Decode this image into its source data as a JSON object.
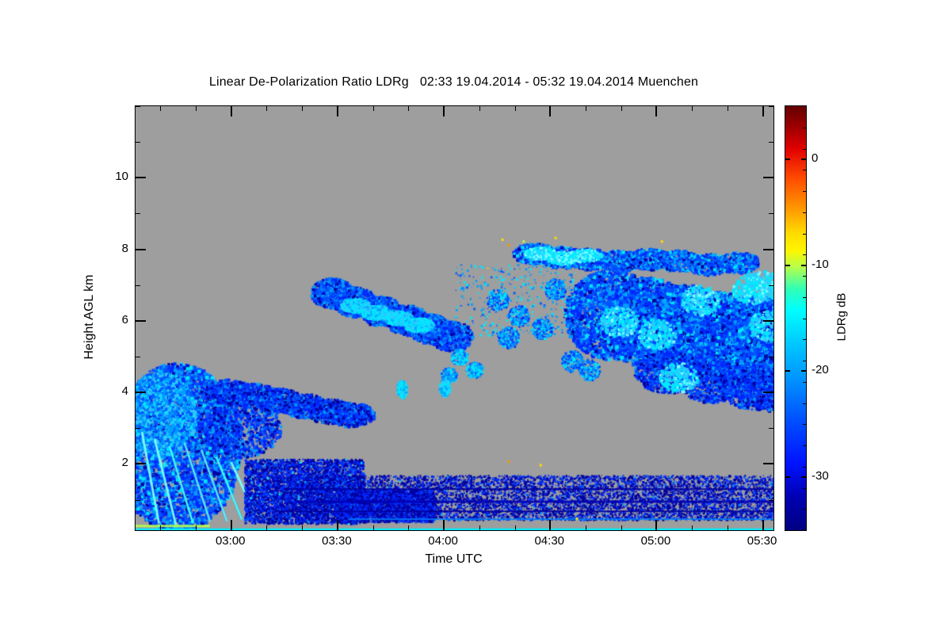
{
  "chart_data": {
    "type": "heatmap",
    "title": "Linear De-Polarization Ratio LDRg   02:33 19.04.2014 - 05:32 19.04.2014 Muenchen",
    "xlabel": "Time UTC",
    "ylabel": "Height AGL km",
    "xlim": [
      2.55,
      5.55
    ],
    "ylim": [
      0.15,
      12.0
    ],
    "xticks": {
      "values": [
        3.0,
        3.5,
        4.0,
        4.5,
        5.0,
        5.5
      ],
      "labels": [
        "03:00",
        "03:30",
        "04:00",
        "04:30",
        "05:00",
        "05:30"
      ],
      "minor_step": 0.1666667
    },
    "yticks": {
      "values": [
        2,
        4,
        6,
        8,
        10
      ],
      "labels": [
        "2",
        "4",
        "6",
        "8",
        "10"
      ],
      "minor_step": 1
    },
    "plot": {
      "background": "#9e9e9e"
    },
    "colorbar": {
      "label": "LDRg dB",
      "vmin": -35,
      "vmax": 5,
      "ticks": [
        {
          "value": 0,
          "label": "0"
        },
        {
          "value": -10,
          "label": "-10"
        },
        {
          "value": -20,
          "label": "-20"
        },
        {
          "value": -30,
          "label": "-30"
        }
      ],
      "minor_step": 2,
      "gradient": [
        [
          "#640000",
          0
        ],
        [
          "#a00000",
          5
        ],
        [
          "#e10000",
          10
        ],
        [
          "#ff4b00",
          17
        ],
        [
          "#ff9600",
          24
        ],
        [
          "#ffdc00",
          30
        ],
        [
          "#fff500",
          34
        ],
        [
          "#b4ff4b",
          38
        ],
        [
          "#32ffb4",
          43
        ],
        [
          "#00ffff",
          48
        ],
        [
          "#00c8ff",
          56
        ],
        [
          "#0096ff",
          64
        ],
        [
          "#0050ff",
          74
        ],
        [
          "#0014ff",
          84
        ],
        [
          "#0000b4",
          92
        ],
        [
          "#000082",
          100
        ]
      ]
    },
    "features": [
      {
        "type": "cloud",
        "name": "left-cloud-core",
        "c": [
          2.74,
          2.5
        ],
        "r": [
          0.3,
          2.35
        ],
        "n": 5200,
        "size": [
          2,
          5
        ],
        "colors": [
          [
            "#0028ff",
            3
          ],
          [
            "#0055ff",
            3
          ],
          [
            "#00a0ff",
            2
          ],
          [
            "#0000a0",
            1.2
          ],
          [
            "#00eaff",
            0.8
          ]
        ]
      },
      {
        "type": "cloud",
        "name": "left-cloud-bright",
        "c": [
          2.66,
          3.4
        ],
        "r": [
          0.17,
          1.2
        ],
        "n": 1600,
        "size": [
          2,
          4
        ],
        "colors": [
          [
            "#00a0ff",
            3
          ],
          [
            "#33c6ff",
            2
          ],
          [
            "#0055ff",
            2
          ],
          [
            "#00eaff",
            1
          ]
        ]
      },
      {
        "type": "cloud",
        "name": "left-cloud-mid",
        "c": [
          3.05,
          3.0
        ],
        "r": [
          0.18,
          0.8
        ],
        "n": 900,
        "size": [
          2,
          4
        ],
        "colors": [
          [
            "#0028ff",
            3
          ],
          [
            "#0055ff",
            2
          ],
          [
            "#0000a0",
            1.5
          ],
          [
            "#00a0ff",
            1
          ]
        ]
      },
      {
        "type": "path",
        "name": "left-cloud-arm",
        "points": [
          [
            2.98,
            4.05
          ],
          [
            3.1,
            3.95
          ],
          [
            3.22,
            3.8
          ],
          [
            3.34,
            3.65
          ],
          [
            3.46,
            3.5
          ],
          [
            3.56,
            3.4
          ]
        ],
        "r": [
          0.11,
          0.34
        ],
        "n": 520,
        "size": [
          2,
          4
        ],
        "colors": [
          [
            "#0028ff",
            3
          ],
          [
            "#0055ff",
            2
          ],
          [
            "#0000a0",
            2
          ],
          [
            "#00a0ff",
            1
          ]
        ]
      },
      {
        "type": "streaks",
        "name": "fallstreaks",
        "width": 3,
        "alpha": 0.85,
        "lines": [
          [
            2.58,
            2.9,
            2.66,
            0.35
          ],
          [
            2.64,
            2.7,
            2.74,
            0.3
          ],
          [
            2.71,
            2.5,
            2.82,
            0.35
          ],
          [
            2.78,
            2.6,
            2.9,
            0.4
          ],
          [
            2.86,
            2.4,
            2.98,
            0.4
          ],
          [
            2.93,
            2.2,
            3.05,
            0.45
          ],
          [
            3.0,
            2.05,
            3.12,
            0.5
          ],
          [
            3.07,
            1.85,
            3.18,
            0.5
          ],
          [
            3.14,
            1.6,
            3.24,
            0.55
          ]
        ],
        "colors": [
          [
            "#7dffff",
            2
          ],
          [
            "#00eaff",
            2
          ],
          [
            "#33c6ff",
            1
          ]
        ]
      },
      {
        "type": "speckle",
        "name": "dense-speckle-chunk",
        "x": [
          3.06,
          3.62
        ],
        "y": [
          0.35,
          2.15
        ],
        "n": 4200,
        "size": [
          2,
          3
        ],
        "colors": [
          [
            "#0000a0",
            4
          ],
          [
            "#0028ff",
            3
          ],
          [
            "#0055ff",
            1
          ],
          [
            "#00eaff",
            0.2
          ]
        ]
      },
      {
        "type": "speckle",
        "name": "speckle-band",
        "x": [
          3.2,
          5.55
        ],
        "y": [
          0.45,
          1.7
        ],
        "n": 8500,
        "size": [
          1,
          3
        ],
        "colors": [
          [
            "#0000a0",
            5
          ],
          [
            "#0028ff",
            2.5
          ],
          [
            "#0055ff",
            0.7
          ],
          [
            "#00a0ff",
            0.2
          ]
        ]
      },
      {
        "type": "speckle",
        "name": "speckle-band-dense",
        "x": [
          3.5,
          3.95
        ],
        "y": [
          0.4,
          1.3
        ],
        "n": 2500,
        "size": [
          2,
          3
        ],
        "colors": [
          [
            "#0000a0",
            4
          ],
          [
            "#0028ff",
            3
          ],
          [
            "#0055ff",
            0.5
          ]
        ]
      },
      {
        "type": "hline",
        "name": "layer-line-1",
        "y": 1.32,
        "x": [
          3.25,
          5.55
        ],
        "w": 2,
        "color": "#0000a0",
        "alpha": 0.9
      },
      {
        "type": "hline",
        "name": "layer-line-2",
        "y": 0.98,
        "x": [
          3.3,
          5.55
        ],
        "w": 3,
        "color": "#0000b4",
        "alpha": 0.9
      },
      {
        "type": "hline",
        "name": "layer-line-3",
        "y": 0.7,
        "x": [
          3.2,
          5.55
        ],
        "w": 2,
        "color": "#0000a0",
        "alpha": 0.9
      },
      {
        "type": "hline",
        "name": "near-ground-line",
        "y": 0.2,
        "x": [
          2.55,
          5.55
        ],
        "w": 4,
        "color": "#00eaff",
        "alpha": 1
      },
      {
        "type": "hline",
        "name": "ground-green-left",
        "y": 0.3,
        "x": [
          2.55,
          2.9
        ],
        "w": 3,
        "color": "#b4ff4b",
        "alpha": 0.9
      },
      {
        "type": "hline",
        "name": "low-azure-line",
        "y": 0.48,
        "x": [
          3.55,
          5.55
        ],
        "w": 2,
        "color": "#0080ff",
        "alpha": 0.85
      },
      {
        "type": "path",
        "name": "mid-band",
        "points": [
          [
            3.47,
            6.8
          ],
          [
            3.58,
            6.55
          ],
          [
            3.7,
            6.3
          ],
          [
            3.82,
            6.05
          ],
          [
            3.93,
            5.8
          ],
          [
            4.03,
            5.6
          ]
        ],
        "r": [
          0.1,
          0.42
        ],
        "n": 650,
        "size": [
          2,
          4
        ],
        "colors": [
          [
            "#0055ff",
            3
          ],
          [
            "#0028ff",
            2
          ],
          [
            "#00a0ff",
            2
          ],
          [
            "#0000a0",
            1
          ]
        ]
      },
      {
        "type": "path",
        "name": "mid-band-core",
        "points": [
          [
            3.58,
            6.45
          ],
          [
            3.68,
            6.25
          ],
          [
            3.78,
            6.1
          ],
          [
            3.88,
            5.9
          ]
        ],
        "r": [
          0.07,
          0.2
        ],
        "n": 420,
        "size": [
          2,
          3
        ],
        "colors": [
          [
            "#00eaff",
            3
          ],
          [
            "#33c6ff",
            2
          ],
          [
            "#00a0ff",
            1
          ]
        ]
      },
      {
        "type": "path",
        "name": "small-mid-patches",
        "points": [
          [
            4.07,
            5.0
          ],
          [
            4.14,
            4.65
          ],
          [
            4.02,
            4.5
          ]
        ],
        "r": [
          0.04,
          0.22
        ],
        "n": 160,
        "size": [
          2,
          3
        ],
        "colors": [
          [
            "#00eaff",
            2
          ],
          [
            "#00a0ff",
            2
          ],
          [
            "#0055ff",
            1
          ]
        ]
      },
      {
        "type": "path",
        "name": "cyan-dashes",
        "points": [
          [
            3.8,
            4.1
          ],
          [
            4.0,
            4.15
          ]
        ],
        "r": [
          0.025,
          0.26
        ],
        "n": 140,
        "size": [
          2,
          3
        ],
        "colors": [
          [
            "#00eaff",
            3
          ],
          [
            "#33c6ff",
            1
          ],
          [
            "#00a0ff",
            1
          ]
        ]
      },
      {
        "type": "path",
        "name": "upper-right-band",
        "points": [
          [
            4.42,
            7.9
          ],
          [
            4.55,
            7.8
          ],
          [
            4.68,
            7.75
          ],
          [
            4.82,
            7.7
          ],
          [
            4.96,
            7.75
          ],
          [
            5.1,
            7.7
          ],
          [
            5.24,
            7.6
          ],
          [
            5.38,
            7.65
          ]
        ],
        "r": [
          0.1,
          0.3
        ],
        "n": 420,
        "size": [
          2,
          4
        ],
        "colors": [
          [
            "#0055ff",
            3
          ],
          [
            "#0028ff",
            2
          ],
          [
            "#00a0ff",
            2
          ],
          [
            "#0000a0",
            1
          ],
          [
            "#00eaff",
            1
          ]
        ]
      },
      {
        "type": "path",
        "name": "upper-band-cyan",
        "points": [
          [
            4.45,
            7.9
          ],
          [
            4.55,
            7.78
          ],
          [
            4.66,
            7.85
          ]
        ],
        "r": [
          0.08,
          0.18
        ],
        "n": 300,
        "size": [
          2,
          3
        ],
        "colors": [
          [
            "#7dffff",
            2
          ],
          [
            "#00eaff",
            3
          ],
          [
            "#33c6ff",
            1
          ]
        ]
      },
      {
        "type": "path",
        "name": "right-cloud-main",
        "points": [
          [
            4.78,
            6.2
          ],
          [
            4.95,
            6.0
          ],
          [
            5.12,
            5.8
          ],
          [
            5.3,
            5.6
          ],
          [
            5.45,
            5.5
          ],
          [
            5.55,
            5.4
          ]
        ],
        "r": [
          0.22,
          1.25
        ],
        "n": 2400,
        "size": [
          2,
          5
        ],
        "colors": [
          [
            "#0055ff",
            3
          ],
          [
            "#0028ff",
            3
          ],
          [
            "#00a0ff",
            2
          ],
          [
            "#0000a0",
            1
          ],
          [
            "#00eaff",
            1
          ]
        ]
      },
      {
        "type": "path",
        "name": "right-cloud-lower-lobe",
        "points": [
          [
            5.05,
            4.6
          ],
          [
            5.25,
            4.35
          ],
          [
            5.45,
            4.15
          ],
          [
            5.55,
            4.1
          ]
        ],
        "r": [
          0.16,
          0.6
        ],
        "n": 900,
        "size": [
          2,
          4
        ],
        "colors": [
          [
            "#0028ff",
            3
          ],
          [
            "#0055ff",
            2
          ],
          [
            "#0000a0",
            1.5
          ],
          [
            "#00a0ff",
            1
          ]
        ]
      },
      {
        "type": "path",
        "name": "right-cloud-cyan-pockets",
        "points": [
          [
            4.82,
            6.0
          ],
          [
            5.0,
            5.65
          ],
          [
            5.2,
            6.6
          ],
          [
            5.44,
            6.9
          ],
          [
            5.1,
            4.45
          ],
          [
            5.52,
            5.9
          ],
          [
            5.5,
            7.0
          ]
        ],
        "r": [
          0.09,
          0.42
        ],
        "n": 260,
        "size": [
          2,
          4
        ],
        "colors": [
          [
            "#00eaff",
            3
          ],
          [
            "#7dffff",
            1
          ],
          [
            "#33c6ff",
            2
          ]
        ]
      },
      {
        "type": "path",
        "name": "right-cloud-fringe",
        "points": [
          [
            4.25,
            6.6
          ],
          [
            4.35,
            6.15
          ],
          [
            4.46,
            5.8
          ],
          [
            4.3,
            5.55
          ],
          [
            4.52,
            6.9
          ],
          [
            4.6,
            4.9
          ],
          [
            4.68,
            4.65
          ]
        ],
        "r": [
          0.05,
          0.3
        ],
        "n": 200,
        "size": [
          2,
          3
        ],
        "colors": [
          [
            "#0055ff",
            2
          ],
          [
            "#00a0ff",
            2
          ],
          [
            "#00eaff",
            1.5
          ],
          [
            "#0028ff",
            1
          ]
        ]
      },
      {
        "type": "speckle",
        "name": "upper-mid-specks",
        "x": [
          4.05,
          4.62
        ],
        "y": [
          5.6,
          7.6
        ],
        "n": 420,
        "size": [
          1,
          3
        ],
        "colors": [
          [
            "#00a0ff",
            2
          ],
          [
            "#00eaff",
            2
          ],
          [
            "#0055ff",
            1
          ],
          [
            "#ffdc00",
            0.08
          ]
        ]
      },
      {
        "type": "dots",
        "name": "bright-specks",
        "size": 3,
        "points": [
          [
            4.27,
            8.3,
            "#ffdc00"
          ],
          [
            4.3,
            8.15,
            "#ff9600"
          ],
          [
            4.37,
            8.25,
            "#b4ff4b"
          ],
          [
            4.52,
            8.35,
            "#ffdc00"
          ],
          [
            4.3,
            2.1,
            "#ff9600"
          ],
          [
            4.62,
            0.5,
            "#ffdc00"
          ],
          [
            5.02,
            8.25,
            "#ffdc00"
          ],
          [
            4.45,
            2.0,
            "#ffdc00"
          ]
        ]
      }
    ]
  }
}
